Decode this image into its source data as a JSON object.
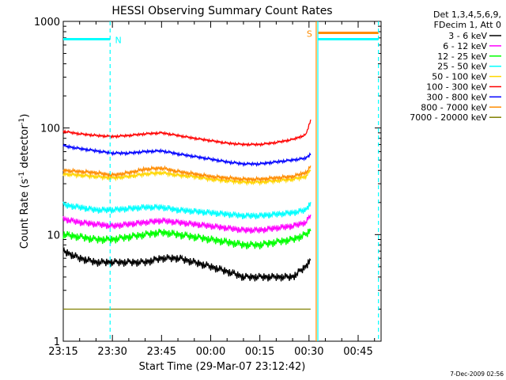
{
  "chart_data": {
    "type": "line",
    "title": "HESSI Observing Summary Count Rates",
    "ylabel": "Count Rate (s",
    "ylabel_sup": "-1",
    "ylabel_mid": " detector",
    "ylabel_sup2": "-1",
    "ylabel_end": ")",
    "xlabel": "Start Time (29-Mar-07 23:12:42)",
    "yscale": "log",
    "ylim": [
      1,
      1000
    ],
    "x_unit": "minutes after 23:15",
    "xlim": [
      0,
      97
    ],
    "yticks": [
      1,
      10,
      100,
      1000
    ],
    "ytick_labels": [
      "1",
      "10",
      "100",
      "1000"
    ],
    "xticks": [
      0,
      15,
      30,
      45,
      60,
      75,
      90
    ],
    "xtick_labels": [
      "23:15",
      "23:30",
      "23:45",
      "00:00",
      "00:15",
      "00:30",
      "00:45"
    ],
    "legend_header": [
      "Det 1,3,4,5,6,9,",
      "FDecim 1, Att 0"
    ],
    "legend_position": "right, outside plot",
    "series": [
      {
        "name": "3 - 6 keV",
        "color": "#000000",
        "x": [
          0,
          5,
          10,
          15,
          20,
          25,
          30,
          35,
          40,
          45,
          50,
          55,
          60,
          65,
          70,
          74,
          75.5
        ],
        "y": [
          7,
          6,
          5.5,
          5.5,
          5.5,
          5.5,
          6,
          6,
          5.5,
          5,
          4.5,
          4,
          4,
          4,
          4,
          5,
          6
        ]
      },
      {
        "name": "6 - 12 keV",
        "color": "#ff00ff",
        "x": [
          0,
          5,
          10,
          15,
          20,
          25,
          30,
          35,
          40,
          45,
          50,
          55,
          60,
          65,
          70,
          74,
          75.5
        ],
        "y": [
          14,
          13,
          12.5,
          12,
          12.5,
          13,
          13.5,
          13,
          12.5,
          12,
          11.5,
          11,
          11,
          11.5,
          12,
          13,
          15
        ]
      },
      {
        "name": "12 - 25 keV",
        "color": "#00ff00",
        "x": [
          0,
          5,
          10,
          15,
          20,
          25,
          30,
          35,
          40,
          45,
          50,
          55,
          60,
          65,
          70,
          74,
          75.5
        ],
        "y": [
          10,
          9.5,
          9,
          9,
          9.5,
          10,
          10.5,
          10,
          9.5,
          9,
          8.5,
          8,
          8,
          8.5,
          9,
          10,
          11
        ]
      },
      {
        "name": "25 - 50 keV",
        "color": "#00ffff",
        "x": [
          0,
          5,
          10,
          15,
          20,
          25,
          30,
          35,
          40,
          45,
          50,
          55,
          60,
          65,
          70,
          74,
          75.5
        ],
        "y": [
          19,
          18,
          17,
          17,
          17.5,
          18,
          18,
          17,
          16.5,
          16,
          15.5,
          15,
          15,
          15.5,
          16,
          17,
          20
        ]
      },
      {
        "name": "50 - 100 keV",
        "color": "#ffd700",
        "x": [
          0,
          5,
          10,
          15,
          20,
          25,
          30,
          35,
          40,
          45,
          50,
          55,
          60,
          65,
          70,
          74,
          75.5
        ],
        "y": [
          37,
          36,
          35,
          34,
          35,
          37,
          38,
          36,
          35,
          33,
          32,
          31,
          31,
          32,
          33,
          35,
          40
        ]
      },
      {
        "name": "100 - 300 keV",
        "color": "#ff0000",
        "x": [
          0,
          5,
          10,
          15,
          20,
          25,
          30,
          35,
          40,
          45,
          50,
          55,
          60,
          65,
          70,
          74,
          75.5
        ],
        "y": [
          93,
          88,
          85,
          83,
          85,
          88,
          90,
          85,
          80,
          76,
          72,
          70,
          70,
          73,
          78,
          86,
          118
        ]
      },
      {
        "name": "300 - 800 keV",
        "color": "#0000ff",
        "x": [
          0,
          5,
          10,
          15,
          20,
          25,
          30,
          35,
          40,
          45,
          50,
          55,
          60,
          65,
          70,
          74,
          75.5
        ],
        "y": [
          68,
          64,
          61,
          58,
          58,
          60,
          61,
          57,
          54,
          51,
          48,
          46,
          46,
          48,
          50,
          52,
          57
        ]
      },
      {
        "name": "800 - 7000 keV",
        "color": "#ff8c00",
        "x": [
          0,
          5,
          10,
          15,
          20,
          25,
          30,
          35,
          40,
          45,
          50,
          55,
          60,
          65,
          70,
          74,
          75.5
        ],
        "y": [
          40,
          39,
          38,
          36,
          38,
          41,
          42,
          39,
          37,
          35,
          34,
          33,
          33,
          34,
          35,
          38,
          43
        ]
      },
      {
        "name": "7000 - 20000 keV",
        "color": "#808000",
        "x": [
          0,
          10,
          20,
          30,
          40,
          50,
          60,
          70,
          75.5
        ],
        "y": [
          2,
          2,
          2,
          2,
          2,
          2,
          2,
          2,
          2
        ]
      }
    ],
    "step_lines": [
      {
        "color": "#00ffff",
        "x": [
          0,
          14.3
        ],
        "y": [
          680,
          680
        ]
      },
      {
        "color": "#00ffff",
        "x": [
          77.7,
          96.2
        ],
        "y": [
          680,
          680
        ]
      },
      {
        "color": "#ff8c00",
        "x": [
          77.7,
          96.2
        ],
        "y": [
          780,
          780
        ]
      }
    ],
    "vertical_markers": [
      {
        "x": 14.3,
        "color": "#00ffff",
        "style": "dashed"
      },
      {
        "x": 77.2,
        "color": "#ff8c00",
        "style": "solid"
      },
      {
        "x": 77.7,
        "color": "#00ffff",
        "style": "solid"
      },
      {
        "x": 96.2,
        "color": "#00ffff",
        "style": "dashed"
      }
    ],
    "annotations": [
      {
        "text": "N",
        "color": "#00ffff",
        "x": 15.8,
        "y": 680
      },
      {
        "text": "S",
        "color": "#ff8c00",
        "x": 74.3,
        "y": 780
      }
    ],
    "footer": "7-Dec-2009 02:56"
  }
}
